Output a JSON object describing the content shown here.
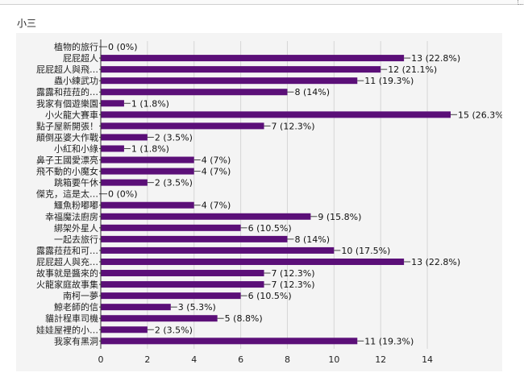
{
  "page": {
    "heading": "小三"
  },
  "chart_data": {
    "type": "bar",
    "orientation": "horizontal",
    "title": "",
    "xlabel": "",
    "ylabel": "",
    "xlim": [
      0,
      15
    ],
    "x_ticks": [
      "0",
      "2",
      "4",
      "6",
      "8",
      "10",
      "12",
      "14"
    ],
    "grid": true,
    "bar_color": "#5b0f78",
    "categories": [
      "植物的旅行",
      "屁屁超人",
      "屁屁超人與飛…",
      "蟲小練武功",
      "露露和菈菈的…",
      "我家有個遊樂園",
      "小火龍大賽車",
      "點子屋新開張！",
      "顛倒巫婆大作戰",
      "小紅和小綠",
      "鼻子王國愛漂亮",
      "飛不動的小魔女",
      "跳箱要午休",
      "傑克，這是太…",
      "鱷魚粉嘟嘟",
      "幸福魔法廚房",
      "綁架外星人",
      "一起去旅行",
      "露露菈菈和可…",
      "屁屁超人與充…",
      "故事就是醬來的",
      "火龍家庭故事集",
      "南柯一夢",
      "鯨老師的信",
      "貓計程車司機",
      "娃娃屋裡的小…",
      "我家有黑洞"
    ],
    "values": [
      0,
      13,
      12,
      11,
      8,
      1,
      15,
      7,
      2,
      1,
      4,
      4,
      2,
      0,
      4,
      9,
      6,
      8,
      10,
      13,
      7,
      7,
      6,
      3,
      5,
      2,
      11
    ],
    "data_labels": [
      "0 (0%)",
      "13 (22.8%)",
      "12 (21.1%)",
      "11 (19.3%)",
      "8 (14%)",
      "1 (1.8%)",
      "15 (26.3%",
      "7 (12.3%)",
      "2 (3.5%)",
      "1 (1.8%)",
      "4 (7%)",
      "4 (7%)",
      "2 (3.5%)",
      "0 (0%)",
      "4 (7%)",
      "9 (15.8%)",
      "6 (10.5%)",
      "8 (14%)",
      "10 (17.5%)",
      "13 (22.8%)",
      "7 (12.3%)",
      "7 (12.3%)",
      "6 (10.5%)",
      "3 (5.3%)",
      "5 (8.8%)",
      "2 (3.5%)",
      "11 (19.3%)"
    ]
  }
}
